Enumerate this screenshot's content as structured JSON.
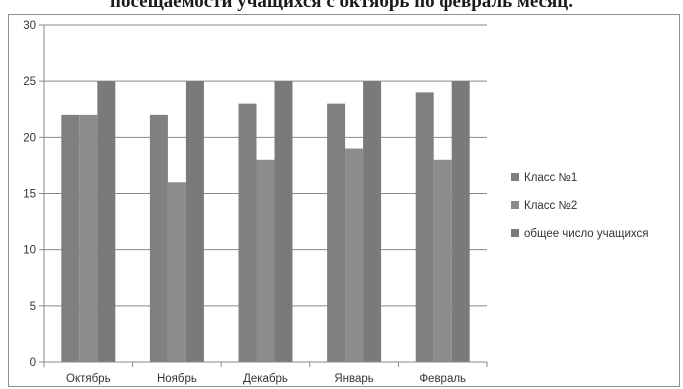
{
  "chart_data": {
    "type": "bar",
    "title": "посещаемости учащихся с октябрь по февраль месяц.",
    "categories": [
      "Октябрь",
      "Ноябрь",
      "Декабрь",
      "Январь",
      "Февраль"
    ],
    "series": [
      {
        "name": "Класс №1",
        "values": [
          22,
          22,
          23,
          23,
          24
        ],
        "color": "#808080"
      },
      {
        "name": "Класс №2",
        "values": [
          22,
          16,
          18,
          19,
          18
        ],
        "color": "#8c8c8c"
      },
      {
        "name": "общее число учащихся",
        "values": [
          25,
          25,
          25,
          25,
          25
        ],
        "color": "#7a7a7a"
      }
    ],
    "yticks": [
      "0",
      "5",
      "10",
      "15",
      "20",
      "25",
      "30"
    ],
    "ylim": [
      0,
      30
    ],
    "grid": true,
    "legend_position": "right"
  }
}
